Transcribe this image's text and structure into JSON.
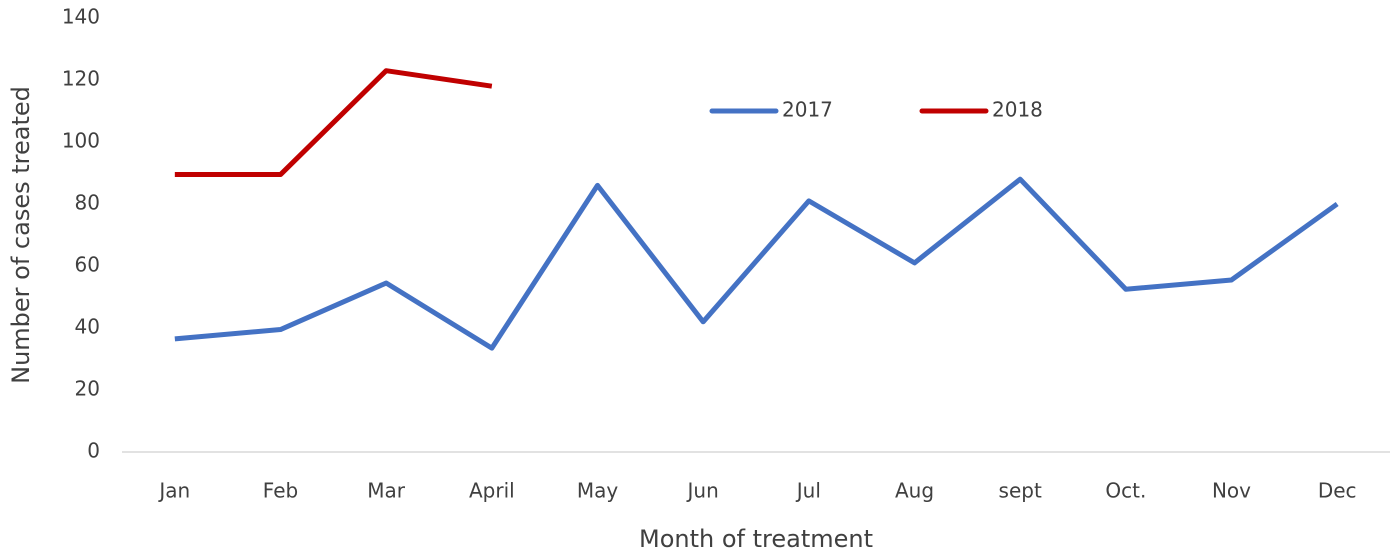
{
  "chart_data": {
    "type": "line",
    "x_label": "Month of treatment",
    "y_label": "Number of cases treated",
    "categories": [
      "Jan",
      "Feb",
      "Mar",
      "April",
      "May",
      "Jun",
      "Jul",
      "Aug",
      "sept",
      "Oct.",
      "Nov",
      "Dec"
    ],
    "series": [
      {
        "name": "2017",
        "color": "#4472c4",
        "values": [
          36.5,
          39.5,
          54.5,
          33.5,
          86,
          42,
          81,
          61,
          88,
          52.5,
          55.5,
          80
        ]
      },
      {
        "name": "2018",
        "color": "#c00000",
        "values": [
          89.5,
          89.5,
          123,
          118,
          null,
          null,
          null,
          null,
          null,
          null,
          null,
          null
        ]
      }
    ],
    "ylim": [
      0,
      140
    ],
    "yticks": [
      0,
      20,
      40,
      60,
      80,
      100,
      120,
      140
    ],
    "grid": false,
    "legend": "top-center"
  }
}
